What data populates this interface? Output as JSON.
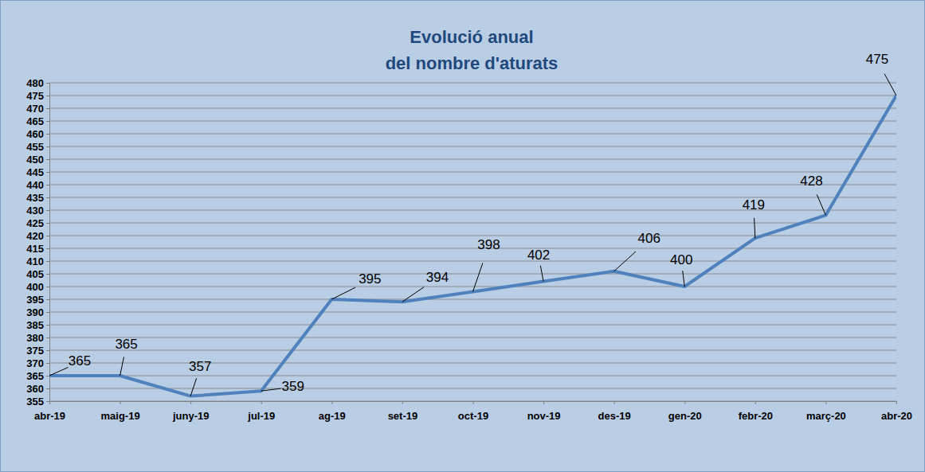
{
  "chart_data": {
    "type": "line",
    "title": "Evolució anual\ndel nombre d'aturats",
    "categories": [
      "abr-19",
      "maig-19",
      "juny-19",
      "jul-19",
      "ag-19",
      "set-19",
      "oct-19",
      "nov-19",
      "des-19",
      "gen-20",
      "febr-20",
      "març-20",
      "abr-20"
    ],
    "values": [
      365,
      365,
      357,
      359,
      395,
      394,
      398,
      402,
      406,
      400,
      419,
      428,
      475
    ],
    "color": "#4f81bd",
    "ylim": [
      355,
      480
    ],
    "yticks": [
      355,
      360,
      365,
      370,
      375,
      380,
      385,
      390,
      395,
      400,
      405,
      410,
      415,
      420,
      425,
      430,
      435,
      440,
      445,
      450,
      455,
      460,
      465,
      470,
      475,
      480
    ],
    "grid": true,
    "data_labels": true
  }
}
